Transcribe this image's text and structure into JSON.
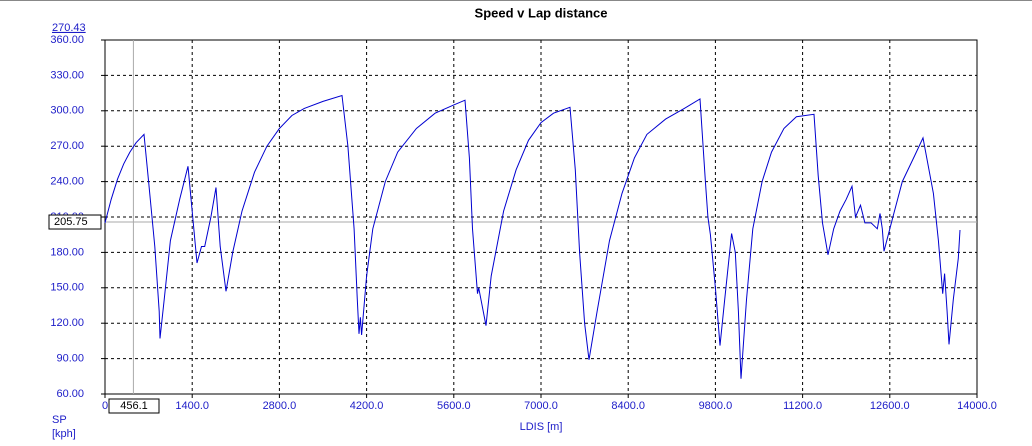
{
  "chart_data": {
    "type": "line",
    "title": "Speed v Lap distance",
    "readout": "270.43",
    "xlabel": "LDIS [m]",
    "ylabel": [
      "SP",
      "[kph]"
    ],
    "cursor": {
      "x": 456.1,
      "y": 205.75
    },
    "color": "#0000d0",
    "grid": true,
    "xlim": [
      0,
      14000
    ],
    "ylim": [
      60,
      360
    ],
    "xticks": [
      0,
      {
        "value": 1400,
        "label": "1400.0"
      },
      {
        "value": 2800,
        "label": "2800.0"
      },
      {
        "value": 4200,
        "label": "4200.0"
      },
      {
        "value": 5600,
        "label": "5600.0"
      },
      {
        "value": 7000,
        "label": "7000.0"
      },
      {
        "value": 8400,
        "label": "8400.0"
      },
      {
        "value": 9800,
        "label": "9800.0"
      },
      {
        "value": 11200,
        "label": "11200.0"
      },
      {
        "value": 12600,
        "label": "12600.0"
      },
      {
        "value": 14000,
        "label": "14000.0"
      }
    ],
    "yticks": [
      {
        "value": 60,
        "label": "60.00"
      },
      {
        "value": 90,
        "label": "90.00"
      },
      {
        "value": 120,
        "label": "120.00"
      },
      {
        "value": 150,
        "label": "150.00"
      },
      {
        "value": 180,
        "label": "180.00"
      },
      {
        "value": 210,
        "label": "210.00"
      },
      {
        "value": 240,
        "label": "240.00"
      },
      {
        "value": 270,
        "label": "270.00"
      },
      {
        "value": 300,
        "label": "300.00"
      },
      {
        "value": 330,
        "label": "330.00"
      },
      {
        "value": 360,
        "label": "360.00"
      }
    ],
    "series": [
      {
        "name": "SP",
        "x": [
          0,
          100,
          200,
          300,
          400,
          500,
          626,
          700,
          800,
          870,
          883,
          950,
          1050,
          1200,
          1333,
          1477,
          1550,
          1600,
          1700,
          1782,
          1850,
          1943,
          2050,
          2200,
          2400,
          2600,
          2800,
          3000,
          3200,
          3500,
          3805,
          3900,
          4000,
          4050,
          4078,
          4100,
          4120,
          4200,
          4300,
          4500,
          4700,
          5000,
          5300,
          5600,
          5780,
          5850,
          5900,
          5980,
          6000,
          6117,
          6200,
          6400,
          6600,
          6800,
          7000,
          7200,
          7466,
          7550,
          7620,
          7700,
          7770,
          7900,
          8100,
          8300,
          8500,
          8700,
          9000,
          9300,
          9553,
          9640,
          9680,
          9720,
          9800,
          9874,
          9950,
          10060,
          10120,
          10170,
          10211,
          10300,
          10400,
          10550,
          10700,
          10900,
          11100,
          11383,
          11450,
          11520,
          11608,
          11700,
          11800,
          11900,
          11993,
          12050,
          12130,
          12200,
          12300,
          12400,
          12443,
          12480,
          12507,
          12650,
          12800,
          13000,
          13133,
          13300,
          13380,
          13450,
          13480,
          13520,
          13551,
          13620,
          13700,
          13727
        ],
        "values": [
          205,
          225,
          242,
          255,
          265,
          273,
          280,
          240,
          185,
          130,
          107,
          140,
          190,
          225,
          253,
          171,
          185,
          185,
          210,
          235,
          185,
          147,
          180,
          215,
          248,
          270,
          285,
          296,
          302,
          308,
          313,
          270,
          200,
          140,
          111,
          125,
          110,
          160,
          200,
          240,
          265,
          285,
          298,
          305,
          309,
          260,
          200,
          145,
          150,
          118,
          160,
          215,
          250,
          275,
          290,
          298,
          303,
          250,
          180,
          120,
          89,
          130,
          190,
          230,
          260,
          280,
          293,
          302,
          310,
          240,
          210,
          195,
          150,
          101,
          140,
          196,
          180,
          130,
          73,
          140,
          200,
          240,
          265,
          285,
          295,
          297,
          245,
          205,
          178,
          200,
          215,
          225,
          236,
          210,
          220,
          205,
          205,
          200,
          213,
          200,
          181,
          210,
          240,
          262,
          277,
          230,
          190,
          145,
          162,
          130,
          102,
          140,
          175,
          199
        ]
      }
    ]
  }
}
